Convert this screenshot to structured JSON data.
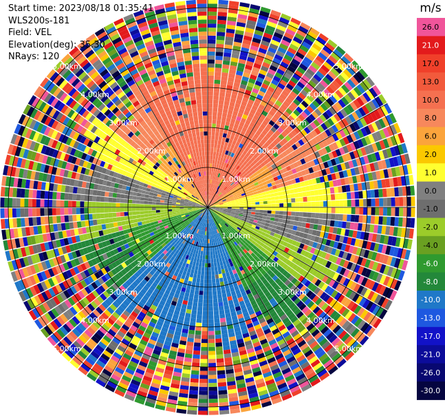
{
  "info": {
    "start_time": "Start time: 2023/08/18 01:35:41",
    "instrument": "WLS200s-181",
    "field": "Field: VEL",
    "elevation": "Elevation(deg): 35.30",
    "nrays": "NRays: 120"
  },
  "chart_data": {
    "type": "heatmap",
    "projection": "polar-ppi",
    "field": "VEL",
    "units": "m/s",
    "nrays": 120,
    "range_rings_km": [
      1.0,
      2.0,
      3.0,
      4.0,
      5.0
    ],
    "ring_labels": [
      "1.00km",
      "2.00km",
      "3.00km",
      "4.00km",
      "5.00km"
    ],
    "max_range_km": 5.2,
    "azimuth_lines_deg": [
      0,
      30,
      60,
      90,
      120,
      150,
      180,
      210,
      240,
      270,
      300,
      330
    ],
    "colorbar": {
      "label": "m/s",
      "ticks": [
        "26.0",
        "21.0",
        "17.0",
        "13.0",
        "10.0",
        "8.0",
        "6.0",
        "2.0",
        "1.0",
        "0.0",
        "-1.0",
        "-2.0",
        "-4.0",
        "-6.0",
        "-8.0",
        "-10.0",
        "-13.0",
        "-17.0",
        "-21.0",
        "-26.0",
        "-30.0"
      ],
      "colors": [
        "#f0559a",
        "#e31a1c",
        "#f0402a",
        "#f25a3c",
        "#f57050",
        "#f7885c",
        "#fba43c",
        "#fbc800",
        "#ffff30",
        "#808080",
        "#6e6e6e",
        "#9ccc2a",
        "#6aa021",
        "#2f9a2f",
        "#23883a",
        "#1f78c8",
        "#1e58e0",
        "#1212c8",
        "#0c0c9a",
        "#080870",
        "#050540"
      ]
    }
  }
}
